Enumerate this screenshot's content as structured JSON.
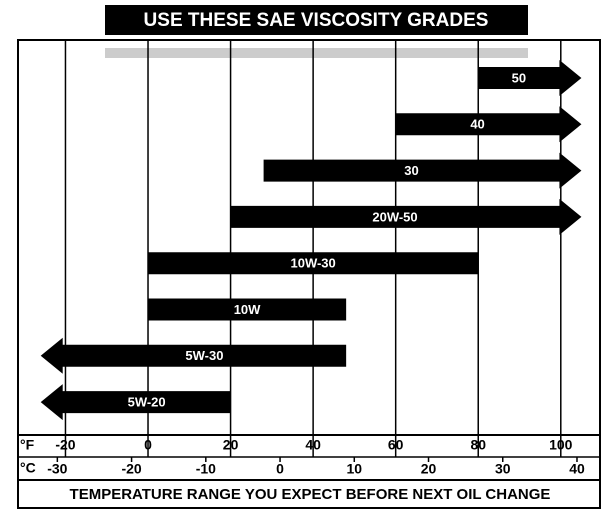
{
  "chart_data": {
    "type": "range-bar",
    "title": "USE THESE SAE VISCOSITY GRADES",
    "xlabel": "TEMPERATURE RANGE YOU EXPECT BEFORE NEXT OIL CHANGE",
    "x_unit_label": "°F",
    "x2_unit_label": "°C",
    "categories": [
      "50",
      "40",
      "30",
      "20W-50",
      "10W-30",
      "10W",
      "5W-30",
      "5W-20"
    ],
    "ranges": [
      [
        80,
        105
      ],
      [
        60,
        105
      ],
      [
        28,
        105
      ],
      [
        20,
        105
      ],
      [
        0,
        80
      ],
      [
        0,
        48
      ],
      [
        -26,
        48
      ],
      [
        -26,
        20
      ]
    ],
    "arrows": [
      "right",
      "right",
      "right",
      "right",
      null,
      null,
      "left",
      "left"
    ],
    "color": "#000000",
    "xlim": [
      -31.5,
      109.5
    ],
    "xticks": [
      -20,
      0,
      20,
      40,
      60,
      80,
      100
    ],
    "x2lim": [
      -35.3,
      43.1
    ],
    "x2ticks": [
      -30,
      -20,
      -10,
      0,
      10,
      20,
      30,
      40
    ],
    "grid": true
  }
}
